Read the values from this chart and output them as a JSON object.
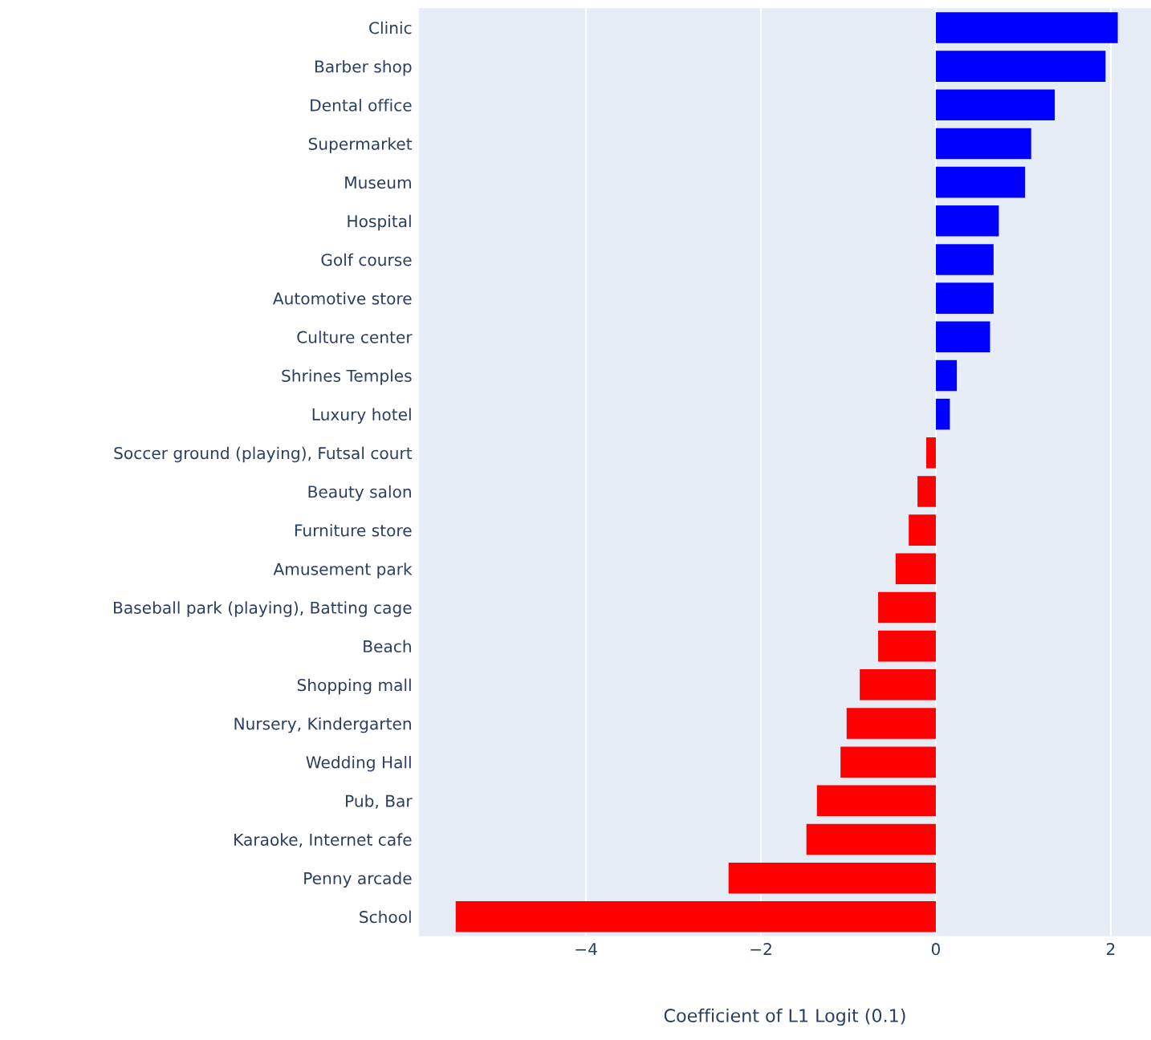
{
  "chart_data": {
    "type": "bar",
    "orientation": "horizontal",
    "xlabel": "Coefficient of L1 Logit (0.1)",
    "categories": [
      "Clinic",
      "Barber shop",
      "Dental office",
      "Supermarket",
      "Museum",
      "Hospital",
      "Golf course",
      "Automotive store",
      "Culture center",
      "Shrines Temples",
      "Luxury hotel",
      "Soccer ground (playing), Futsal court",
      "Beauty salon",
      "Furniture store",
      "Amusement park",
      "Baseball park (playing), Batting cage",
      "Beach",
      "Shopping mall",
      "Nursery, Kindergarten",
      "Wedding Hall",
      "Pub, Bar",
      "Karaoke, Internet cafe",
      "Penny arcade",
      "School"
    ],
    "values": [
      2.08,
      1.94,
      1.36,
      1.09,
      1.02,
      0.72,
      0.66,
      0.66,
      0.62,
      0.24,
      0.16,
      -0.11,
      -0.21,
      -0.31,
      -0.46,
      -0.66,
      -0.66,
      -0.87,
      -1.02,
      -1.09,
      -1.36,
      -1.48,
      -2.37,
      -5.49
    ],
    "colors": [
      "#0000ff",
      "#0000ff",
      "#0000ff",
      "#0000ff",
      "#0000ff",
      "#0000ff",
      "#0000ff",
      "#0000ff",
      "#0000ff",
      "#0000ff",
      "#0000ff",
      "#ff0000",
      "#ff0000",
      "#ff0000",
      "#ff0000",
      "#ff0000",
      "#ff0000",
      "#ff0000",
      "#ff0000",
      "#ff0000",
      "#ff0000",
      "#ff0000",
      "#ff0000",
      "#ff0000"
    ],
    "xlim": [
      -5.91,
      2.46
    ],
    "xticks": [
      {
        "value": -4,
        "label": "−4"
      },
      {
        "value": -2,
        "label": "−2"
      },
      0,
      2
    ],
    "grid": "x"
  }
}
